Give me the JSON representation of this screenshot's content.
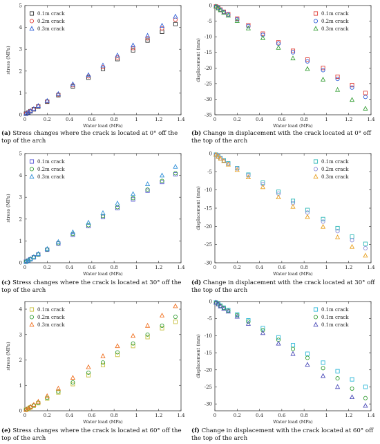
{
  "captions": [
    {
      "letter": "(a)",
      "text": " Stress changes where the crack is located at 0° off the top of the arch"
    },
    {
      "letter": "(b)",
      "text": " Change in displacement with the crack located at 0° off the top of the arch"
    },
    {
      "letter": "(c)",
      "text": " Stress changes where the crack is located at 30° off the top of the arch"
    },
    {
      "letter": "(d)",
      "text": " Change in displacement with the crack located at 30° off the top of the arch"
    },
    {
      "letter": "(e)",
      "text": " Stress changes where the crack is located at 60° off the top of the arch"
    },
    {
      "letter": "(f)",
      "text": " Change in displacement with the crack located at 60° off the top of the arch"
    }
  ],
  "chart_data": [
    {
      "type": "scatter",
      "xlabel": "Water load (MPa)",
      "ylabel": "stress (MPa)",
      "xlim": [
        0,
        1.4
      ],
      "ylim": [
        0,
        5
      ],
      "xticks": [
        "0",
        "0.2",
        "0.4",
        "0.6",
        "0.8",
        "1",
        "1.2",
        "1.4"
      ],
      "yticks": [
        "0",
        "1",
        "2",
        "3",
        "4",
        "5"
      ],
      "legend_position": "top-left",
      "grid": false,
      "x": [
        0.01,
        0.03,
        0.05,
        0.08,
        0.12,
        0.2,
        0.3,
        0.43,
        0.57,
        0.7,
        0.83,
        0.97,
        1.1,
        1.23,
        1.35
      ],
      "series": [
        {
          "name": "0.1m  crack",
          "marker": "square",
          "color": "#333333",
          "values": [
            0.05,
            0.1,
            0.16,
            0.25,
            0.38,
            0.6,
            0.9,
            1.3,
            1.7,
            2.1,
            2.55,
            2.95,
            3.4,
            3.8,
            4.15
          ]
        },
        {
          "name": "0.2m  crack",
          "marker": "circle",
          "color": "#e0403a",
          "values": [
            0.05,
            0.11,
            0.17,
            0.26,
            0.4,
            0.62,
            0.93,
            1.35,
            1.76,
            2.18,
            2.62,
            3.05,
            3.5,
            3.95,
            4.35
          ]
        },
        {
          "name": "0.3m  crack",
          "marker": "triangle",
          "color": "#2f5fd8",
          "values": [
            0.05,
            0.11,
            0.18,
            0.27,
            0.41,
            0.64,
            0.96,
            1.4,
            1.82,
            2.26,
            2.72,
            3.18,
            3.62,
            4.08,
            4.5
          ]
        }
      ]
    },
    {
      "type": "scatter",
      "xlabel": "Water load (MPa)",
      "ylabel": "displacement (mm)",
      "xlim": [
        0,
        1.4
      ],
      "ylim": [
        -35,
        0
      ],
      "xticks": [
        "0",
        "0.2",
        "0.4",
        "0.6",
        "0.8",
        "1",
        "1.2",
        "1.4"
      ],
      "yticks": [
        "0",
        "-5",
        "-10",
        "-15",
        "-20",
        "-25",
        "-30",
        "-35"
      ],
      "legend_position": "top-right",
      "grid": false,
      "x": [
        0.01,
        0.03,
        0.05,
        0.08,
        0.12,
        0.2,
        0.3,
        0.43,
        0.57,
        0.7,
        0.83,
        0.97,
        1.1,
        1.23,
        1.35
      ],
      "series": [
        {
          "name": "0.1m  crack",
          "marker": "square",
          "color": "#e0403a",
          "values": [
            -0.3,
            -0.8,
            -1.3,
            -2.0,
            -2.8,
            -4.2,
            -6.3,
            -9.0,
            -11.8,
            -14.5,
            -17.3,
            -20.0,
            -22.8,
            -25.5,
            -28.0
          ]
        },
        {
          "name": "0.2m  crack",
          "marker": "circle",
          "color": "#2f5fd8",
          "values": [
            -0.3,
            -0.8,
            -1.4,
            -2.1,
            -2.9,
            -4.4,
            -6.6,
            -9.4,
            -12.2,
            -15.0,
            -17.9,
            -20.7,
            -23.5,
            -26.3,
            -29.3
          ]
        },
        {
          "name": "0.3m  crack",
          "marker": "triangle",
          "color": "#3aa03a",
          "values": [
            -0.3,
            -0.9,
            -1.5,
            -2.3,
            -3.2,
            -4.9,
            -7.3,
            -10.4,
            -13.5,
            -16.9,
            -20.3,
            -23.7,
            -27.0,
            -30.2,
            -33.0
          ]
        }
      ]
    },
    {
      "type": "scatter",
      "xlabel": "Water load (MPa)",
      "ylabel": "stress (MPa)",
      "xlim": [
        0,
        1.4
      ],
      "ylim": [
        0,
        5
      ],
      "xticks": [
        "0",
        "0.2",
        "0.4",
        "0.6",
        "0.8",
        "1",
        "1.2",
        "1.4"
      ],
      "yticks": [
        "0",
        "1",
        "2",
        "3",
        "4",
        "5"
      ],
      "legend_position": "top-left",
      "grid": false,
      "x": [
        0.01,
        0.03,
        0.05,
        0.08,
        0.12,
        0.2,
        0.3,
        0.43,
        0.57,
        0.7,
        0.83,
        0.97,
        1.1,
        1.23,
        1.35
      ],
      "series": [
        {
          "name": "0.1m  crack",
          "marker": "square",
          "color": "#5a5ad6",
          "values": [
            0.05,
            0.1,
            0.16,
            0.25,
            0.38,
            0.6,
            0.88,
            1.28,
            1.68,
            2.1,
            2.5,
            2.9,
            3.3,
            3.7,
            4.05
          ]
        },
        {
          "name": "0.2m  crack",
          "marker": "circle",
          "color": "#3aa03a",
          "values": [
            0.05,
            0.1,
            0.16,
            0.25,
            0.38,
            0.61,
            0.9,
            1.32,
            1.72,
            2.14,
            2.55,
            2.96,
            3.35,
            3.75,
            4.1
          ]
        },
        {
          "name": "0.3m  crack",
          "marker": "triangle",
          "color": "#2f8fd8",
          "values": [
            0.05,
            0.11,
            0.18,
            0.27,
            0.41,
            0.64,
            0.96,
            1.4,
            1.84,
            2.28,
            2.72,
            3.15,
            3.6,
            4.0,
            4.4
          ]
        }
      ]
    },
    {
      "type": "scatter",
      "xlabel": "Water load (MPa)",
      "ylabel": "displacement (mm)",
      "xlim": [
        0,
        1.4
      ],
      "ylim": [
        -30,
        0
      ],
      "xticks": [
        "0",
        "0.2",
        "0.4",
        "0.6",
        "0.8",
        "1",
        "1.2",
        "1.4"
      ],
      "yticks": [
        "0",
        "-5",
        "-10",
        "-15",
        "-20",
        "-25",
        "-30"
      ],
      "legend_position": "top-right",
      "grid": false,
      "x": [
        0.01,
        0.03,
        0.05,
        0.08,
        0.12,
        0.2,
        0.3,
        0.43,
        0.57,
        0.7,
        0.83,
        0.97,
        1.1,
        1.23,
        1.35
      ],
      "series": [
        {
          "name": "0.1m  crack",
          "marker": "square",
          "color": "#2fb8b8",
          "values": [
            -0.3,
            -0.8,
            -1.3,
            -1.9,
            -2.7,
            -4.0,
            -5.8,
            -8.0,
            -10.5,
            -13.0,
            -15.5,
            -18.0,
            -20.5,
            -22.8,
            -24.8
          ]
        },
        {
          "name": "0.2m  crack",
          "marker": "circle",
          "color": "#8a8ad6",
          "values": [
            -0.3,
            -0.8,
            -1.3,
            -2.0,
            -2.8,
            -4.1,
            -6.0,
            -8.4,
            -11.0,
            -13.6,
            -16.2,
            -18.7,
            -21.3,
            -23.8,
            -26.0
          ]
        },
        {
          "name": "0.3m  crack",
          "marker": "triangle",
          "color": "#e8a020",
          "values": [
            -0.3,
            -0.9,
            -1.4,
            -2.1,
            -3.0,
            -4.5,
            -6.5,
            -9.2,
            -12.0,
            -14.6,
            -17.4,
            -20.1,
            -23.0,
            -25.6,
            -28.0
          ]
        }
      ]
    },
    {
      "type": "scatter",
      "xlabel": "Water load (MPa)",
      "ylabel": "stress (MPa)",
      "xlim": [
        0,
        1.4
      ],
      "ylim": [
        0,
        4.3
      ],
      "xticks": [
        "0",
        "0.2",
        "0.4",
        "0.6",
        "0.8",
        "1",
        "1.2",
        "1.4"
      ],
      "yticks": [
        "0",
        "1",
        "2",
        "3",
        "4"
      ],
      "legend_position": "top-left",
      "grid": false,
      "x": [
        0.01,
        0.03,
        0.05,
        0.08,
        0.12,
        0.2,
        0.3,
        0.43,
        0.57,
        0.7,
        0.83,
        0.97,
        1.1,
        1.23,
        1.35
      ],
      "series": [
        {
          "name": "0.1m  crack",
          "marker": "square",
          "color": "#c8c040",
          "values": [
            0.04,
            0.08,
            0.13,
            0.2,
            0.3,
            0.48,
            0.72,
            1.05,
            1.4,
            1.8,
            2.2,
            2.55,
            2.9,
            3.25,
            3.5
          ]
        },
        {
          "name": "0.2m  crack",
          "marker": "circle",
          "color": "#3aa03a",
          "values": [
            0.04,
            0.09,
            0.14,
            0.21,
            0.32,
            0.51,
            0.76,
            1.12,
            1.5,
            1.9,
            2.3,
            2.65,
            3.0,
            3.35,
            3.7
          ]
        },
        {
          "name": "0.3m  crack",
          "marker": "triangle",
          "color": "#f07020",
          "values": [
            0.05,
            0.1,
            0.16,
            0.24,
            0.36,
            0.58,
            0.88,
            1.3,
            1.72,
            2.15,
            2.55,
            2.95,
            3.35,
            3.75,
            4.12
          ]
        }
      ]
    },
    {
      "type": "scatter",
      "xlabel": "Water load (MPa)",
      "ylabel": "displacement (mm)",
      "xlim": [
        0,
        1.4
      ],
      "ylim": [
        -32,
        0
      ],
      "xticks": [
        "0",
        "0.2",
        "0.4",
        "0.6",
        "0.8",
        "1",
        "1.2",
        "1.4"
      ],
      "yticks": [
        "0",
        "-5",
        "-10",
        "-15",
        "-20",
        "-25",
        "-30"
      ],
      "legend_position": "top-right",
      "grid": false,
      "x": [
        0.01,
        0.03,
        0.05,
        0.08,
        0.12,
        0.2,
        0.3,
        0.43,
        0.57,
        0.7,
        0.83,
        0.97,
        1.1,
        1.23,
        1.35
      ],
      "series": [
        {
          "name": "0.1m  crack",
          "marker": "square",
          "color": "#2fb8d8",
          "values": [
            -0.3,
            -0.7,
            -1.2,
            -1.8,
            -2.5,
            -3.8,
            -5.5,
            -7.8,
            -10.5,
            -12.8,
            -15.3,
            -17.9,
            -20.4,
            -22.8,
            -25.0
          ]
        },
        {
          "name": "0.1m  crack",
          "marker": "circle",
          "color": "#3aa03a",
          "values": [
            -0.3,
            -0.8,
            -1.3,
            -1.9,
            -2.7,
            -4.0,
            -5.9,
            -8.4,
            -11.2,
            -13.9,
            -16.5,
            -19.5,
            -22.5,
            -25.5,
            -28.3
          ]
        },
        {
          "name": "0.1m  crack",
          "marker": "triangle",
          "color": "#4a4ab8",
          "values": [
            -0.3,
            -0.8,
            -1.4,
            -2.1,
            -2.9,
            -4.4,
            -6.5,
            -9.2,
            -12.3,
            -15.3,
            -18.5,
            -21.8,
            -25.0,
            -28.0,
            -30.5
          ]
        }
      ]
    }
  ]
}
